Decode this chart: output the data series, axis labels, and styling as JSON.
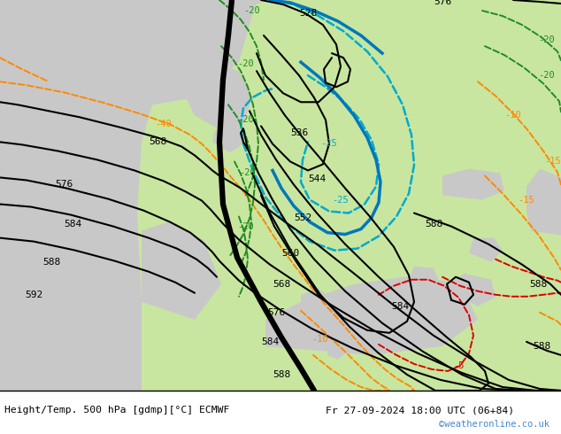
{
  "title_left": "Height/Temp. 500 hPa [gdmp][°C] ECMWF",
  "title_right": "Fr 27-09-2024 18:00 UTC (06+84)",
  "watermark": "©weatheronline.co.uk",
  "bg_gray": "#c8c8c8",
  "land_green_light": "#c8e6a0",
  "land_green_mid": "#b0d890",
  "watermark_color": "#4488cc"
}
